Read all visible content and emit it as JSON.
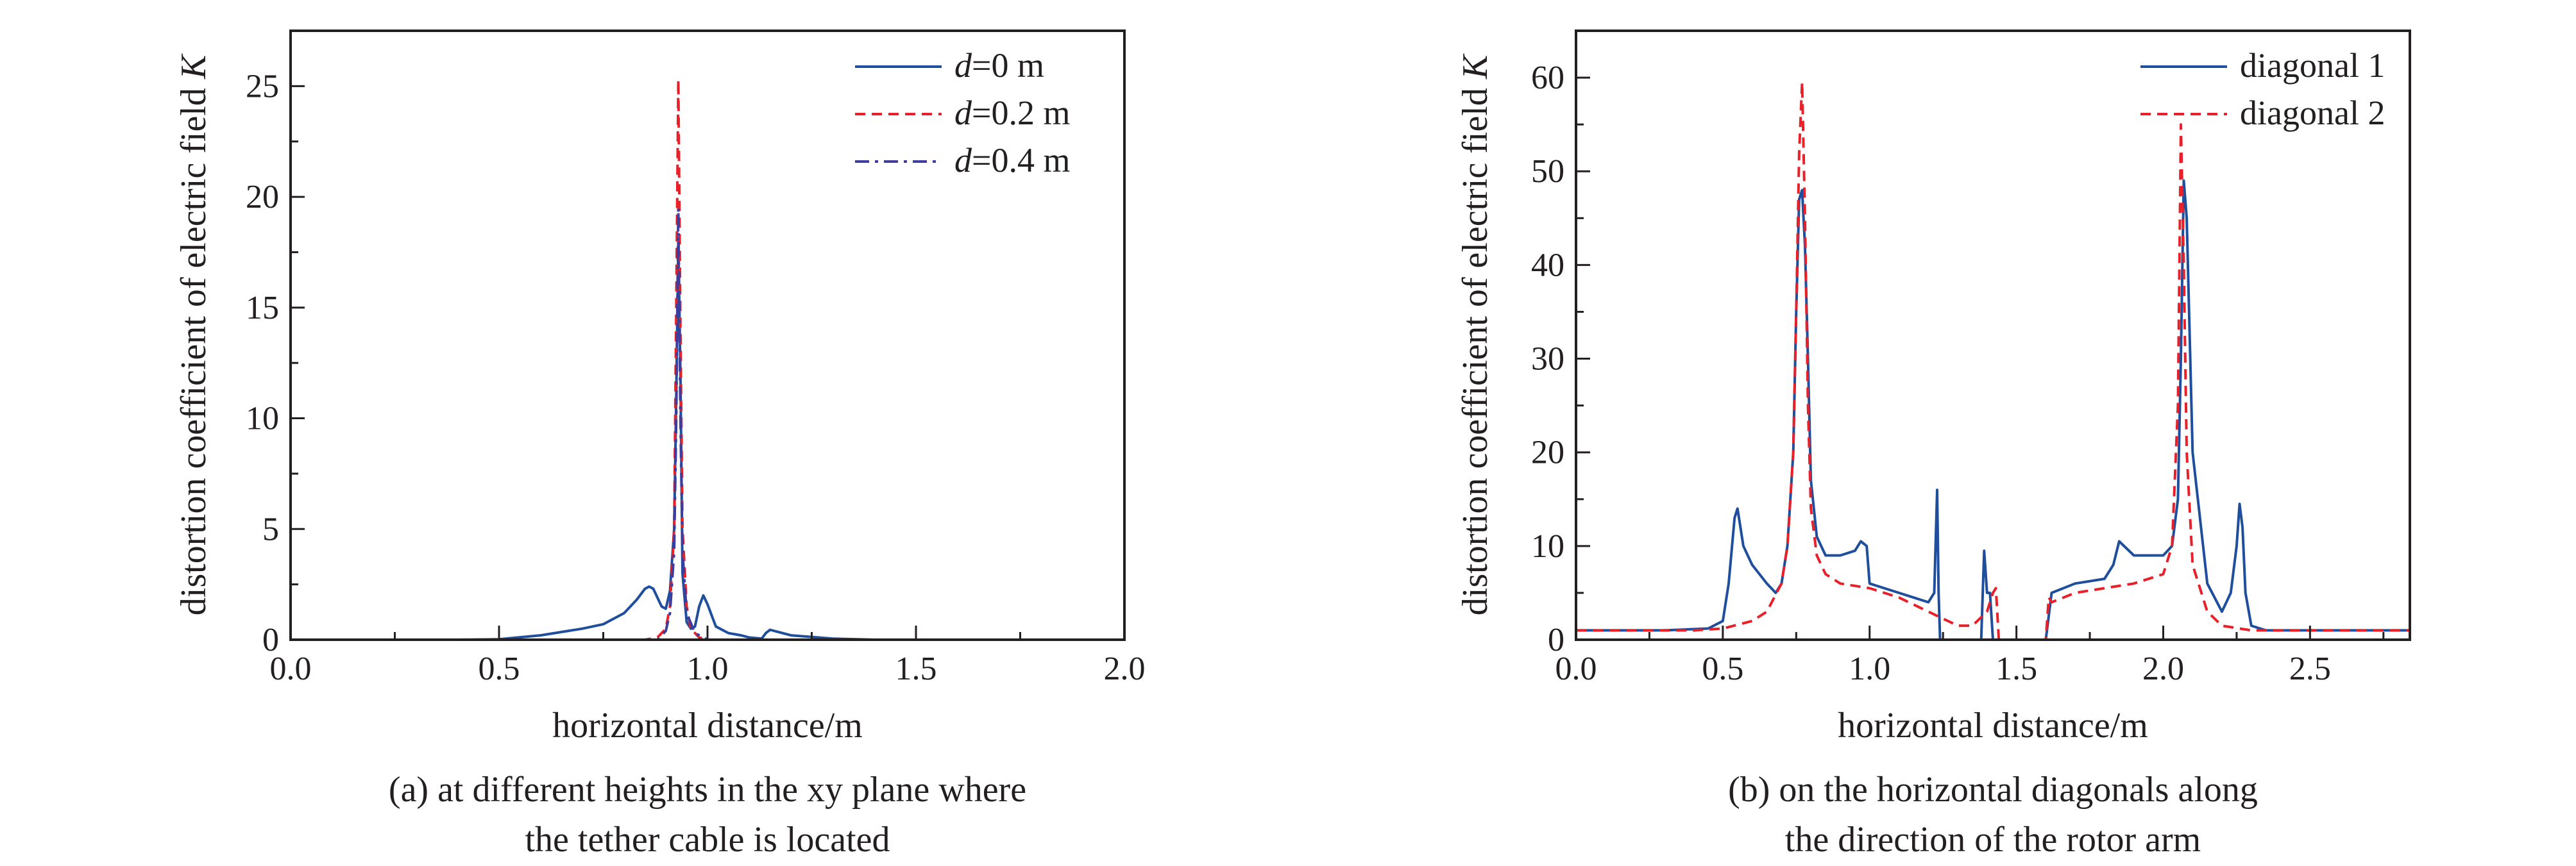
{
  "colors": {
    "blue": "#1f4e9c",
    "red": "#e8202a",
    "purple": "#3d3d9e",
    "axis": "#231f20"
  },
  "chart_data": [
    {
      "type": "line",
      "panel": "a",
      "xlabel": "horizontal distance/m",
      "ylabel": "distortion coefficient of electric field K",
      "ylabel_var": "K",
      "xlim": [
        0,
        2
      ],
      "ylim": [
        0,
        27.5
      ],
      "xticks": [
        0.0,
        0.5,
        1.0,
        1.5,
        2.0
      ],
      "xtick_labels": [
        "0.0",
        "0.5",
        "1.0",
        "1.5",
        "2.0"
      ],
      "yticks": [
        0,
        5,
        10,
        15,
        20,
        25
      ],
      "ytick_labels": [
        "0",
        "5",
        "10",
        "15",
        "20",
        "25"
      ],
      "caption_lines": [
        "(a) at different heights in the xy plane where",
        "the tether cable is located"
      ],
      "legend_position": "top-right",
      "legend": [
        {
          "prefix": "d",
          "suffix": "=0 m"
        },
        {
          "prefix": "d",
          "suffix": "=0.2 m"
        },
        {
          "prefix": "d",
          "suffix": "=0.4 m"
        }
      ],
      "series": [
        {
          "name": "d=0 m",
          "color": "#1f4e9c",
          "style": "solid",
          "x": [
            0.0,
            0.4,
            0.5,
            0.6,
            0.7,
            0.75,
            0.8,
            0.83,
            0.85,
            0.86,
            0.87,
            0.88,
            0.89,
            0.9,
            0.91,
            0.92,
            0.925,
            0.93,
            0.935,
            0.94,
            0.95,
            0.96,
            0.97,
            0.98,
            0.99,
            1.0,
            1.02,
            1.05,
            1.08,
            1.1,
            1.13,
            1.14,
            1.15,
            1.17,
            1.2,
            1.3,
            1.4,
            2.0
          ],
          "y": [
            0,
            0,
            0.02,
            0.2,
            0.5,
            0.7,
            1.2,
            1.8,
            2.3,
            2.4,
            2.3,
            1.9,
            1.5,
            1.4,
            2.2,
            5.0,
            11.0,
            18.0,
            12.0,
            3.0,
            0.8,
            0.5,
            0.6,
            1.5,
            2.0,
            1.6,
            0.6,
            0.3,
            0.2,
            0.1,
            0.05,
            0.3,
            0.45,
            0.35,
            0.2,
            0.05,
            0,
            0
          ]
        },
        {
          "name": "d=0.2 m",
          "color": "#e8202a",
          "style": "dashed",
          "x": [
            0.0,
            0.85,
            0.88,
            0.9,
            0.91,
            0.92,
            0.925,
            0.93,
            0.935,
            0.94,
            0.95,
            0.96,
            0.98,
            1.0,
            2.0
          ],
          "y": [
            0,
            0,
            0.1,
            0.5,
            1.5,
            5.0,
            15.0,
            25.3,
            14.0,
            5.0,
            1.5,
            0.5,
            0.1,
            0,
            0
          ]
        },
        {
          "name": "d=0.4 m",
          "color": "#3d3d9e",
          "style": "dashdot",
          "x": [
            0.0,
            0.88,
            0.9,
            0.91,
            0.92,
            0.925,
            0.93,
            0.935,
            0.94,
            0.95,
            0.97,
            1.0,
            2.0
          ],
          "y": [
            0,
            0,
            0.4,
            1.2,
            4.0,
            10.0,
            19.5,
            10.0,
            4.0,
            1.2,
            0.3,
            0,
            0
          ]
        }
      ]
    },
    {
      "type": "line",
      "panel": "b",
      "xlabel": "horizontal distance/m",
      "ylabel": "distortion coefficient of electric field K",
      "ylabel_var": "K",
      "xlim": [
        0,
        2.84
      ],
      "ylim": [
        0,
        65
      ],
      "xticks": [
        0.0,
        0.5,
        1.0,
        1.5,
        2.0,
        2.5
      ],
      "xtick_labels": [
        "0.0",
        "0.5",
        "1.0",
        "1.5",
        "2.0",
        "2.5"
      ],
      "yticks": [
        0,
        10,
        20,
        30,
        40,
        50,
        60
      ],
      "ytick_labels": [
        "0",
        "10",
        "20",
        "30",
        "40",
        "50",
        "60"
      ],
      "caption_lines": [
        "(b) on the horizontal diagonals along",
        "the direction of the rotor arm"
      ],
      "legend_position": "top-right",
      "legend": [
        {
          "prefix": "",
          "suffix": "diagonal 1"
        },
        {
          "prefix": "",
          "suffix": "diagonal 2"
        }
      ],
      "series": [
        {
          "name": "diagonal 1",
          "color": "#1f4e9c",
          "style": "solid",
          "x": [
            0.0,
            0.3,
            0.45,
            0.5,
            0.52,
            0.54,
            0.55,
            0.57,
            0.6,
            0.65,
            0.68,
            0.7,
            0.72,
            0.74,
            0.75,
            0.76,
            0.77,
            0.78,
            0.79,
            0.8,
            0.82,
            0.85,
            0.9,
            0.95,
            0.97,
            0.99,
            1.0,
            1.05,
            1.1,
            1.15,
            1.2,
            1.22,
            1.23,
            1.235,
            1.24,
            1.26,
            1.3,
            1.38,
            1.39,
            1.4,
            1.41,
            1.42,
            1.6,
            1.62,
            1.7,
            1.8,
            1.83,
            1.85,
            1.9,
            1.95,
            2.0,
            2.03,
            2.05,
            2.06,
            2.07,
            2.08,
            2.1,
            2.15,
            2.2,
            2.23,
            2.25,
            2.26,
            2.27,
            2.28,
            2.3,
            2.35,
            2.4,
            2.5,
            2.84
          ],
          "y": [
            1,
            1,
            1.2,
            2,
            6,
            13,
            14,
            10,
            8,
            6,
            5,
            6,
            10,
            20,
            35,
            47,
            48,
            42,
            30,
            17,
            11,
            9,
            9,
            9.5,
            10.5,
            10,
            6,
            5.5,
            5,
            4.5,
            4,
            5,
            16,
            5,
            0,
            0,
            0,
            0,
            9.5,
            5,
            5,
            0,
            0,
            5,
            6,
            6.5,
            8,
            10.5,
            9,
            9,
            9,
            10,
            15,
            30,
            49,
            45,
            20,
            6,
            3,
            5,
            10,
            14.5,
            12,
            5,
            1.5,
            1,
            1,
            1,
            1
          ]
        },
        {
          "name": "diagonal 2",
          "color": "#e8202a",
          "style": "dashed",
          "x": [
            0.0,
            0.4,
            0.5,
            0.6,
            0.65,
            0.7,
            0.72,
            0.74,
            0.75,
            0.76,
            0.77,
            0.78,
            0.79,
            0.8,
            0.82,
            0.85,
            0.9,
            1.0,
            1.1,
            1.2,
            1.3,
            1.35,
            1.4,
            1.42,
            1.43,
            1.44,
            1.6,
            1.61,
            1.62,
            1.7,
            1.8,
            1.9,
            2.0,
            2.03,
            2.05,
            2.06,
            2.07,
            2.08,
            2.1,
            2.15,
            2.2,
            2.3,
            2.5,
            2.84
          ],
          "y": [
            1,
            1,
            1.2,
            2,
            3,
            6,
            10,
            20,
            35,
            52,
            59.5,
            45,
            25,
            14,
            9,
            7,
            6,
            5.5,
            4.5,
            3,
            1.5,
            1.5,
            3,
            5,
            5.5,
            0,
            0,
            4.5,
            4,
            5,
            5.5,
            6,
            7,
            10,
            25,
            55,
            40,
            20,
            8,
            3,
            1.5,
            1,
            1,
            1
          ]
        }
      ]
    }
  ]
}
